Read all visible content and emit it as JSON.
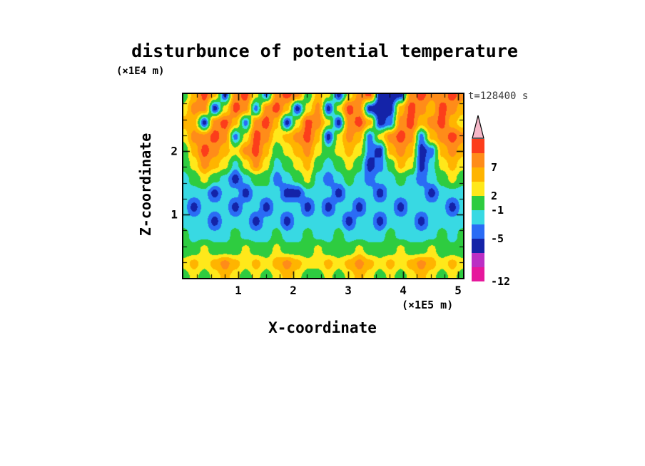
{
  "chart_data": {
    "type": "heatmap",
    "title": "disturbunce of potential temperature",
    "time_label": "t=128400 s",
    "xlabel": "X-coordinate",
    "x_unit_label": "(×1E5 m)",
    "ylabel": "Z-coordinate",
    "y_unit_label": "(×1E4 m)",
    "x_range": [
      0,
      5.09
    ],
    "x_ticks": [
      1,
      2,
      3,
      4,
      5
    ],
    "x_minor_tick_step": 0.25,
    "z_range": [
      0,
      2.9
    ],
    "z_ticks": [
      1,
      2
    ],
    "z_minor_tick_step": 0.25,
    "grid": false,
    "legend_position": "right",
    "palette": {
      "colors": [
        "#e6189c",
        "#bb2fc4",
        "#1423a8",
        "#2a6cf5",
        "#38d9e3",
        "#2ecc40",
        "#ffe81a",
        "#ffb400",
        "#ff8c19",
        "#fc3d1b",
        "#f6b8c8"
      ],
      "bin_upper_edges": [
        -9.7,
        -7.3,
        -5,
        -3,
        -1,
        2,
        4.5,
        7,
        9.5,
        12
      ],
      "labels": [
        {
          "text": "7",
          "frac_from_bottom": 0.8
        },
        {
          "text": "2",
          "frac_from_bottom": 0.6
        },
        {
          "text": "-1",
          "frac_from_bottom": 0.5
        },
        {
          "text": "-5",
          "frac_from_bottom": 0.3
        },
        {
          "text": "-12",
          "frac_from_bottom": 0.0
        }
      ]
    },
    "values_grid": {
      "note": "potential-temperature disturbance; rows top-to-bottom (z = 2.9 to 0 x1E4 m), cols left-to-right (x = 0 to 5.09 x1E5 m)",
      "rows": [
        [
          0,
          5.5,
          10.5,
          5.5,
          -6,
          8,
          10.5,
          3,
          -4,
          8,
          10.5,
          8,
          0,
          5.5,
          3,
          -6,
          3,
          8,
          10.5,
          -6,
          -7,
          -6,
          8,
          10.5,
          8,
          8,
          10.5,
          8
        ],
        [
          3,
          8,
          8,
          -6,
          3,
          10.5,
          8,
          -4,
          8,
          10.5,
          5.5,
          -6,
          3,
          8,
          -6,
          3,
          10.5,
          8,
          -6,
          -7,
          -6,
          5.5,
          10.5,
          8,
          5.5,
          10.5,
          8,
          5.5
        ],
        [
          5.5,
          5.5,
          -6,
          8,
          10.5,
          5.5,
          -4,
          8,
          10.5,
          5.5,
          -6,
          3,
          10.5,
          8,
          3,
          -6,
          8,
          10.5,
          5.5,
          -6,
          -4,
          8,
          10.5,
          5.5,
          8,
          10.5,
          5.5,
          3
        ],
        [
          3,
          8,
          8,
          10.5,
          8,
          -4,
          3,
          10.5,
          8,
          3,
          5.5,
          8,
          10.5,
          5.5,
          -6,
          3,
          8,
          5.5,
          -4,
          3,
          8,
          10.5,
          8,
          -4,
          5.5,
          8,
          10.5,
          8
        ],
        [
          0,
          5.5,
          10.5,
          8,
          5.5,
          3,
          8,
          10.5,
          5.5,
          0,
          3,
          5.5,
          8,
          3,
          0,
          3,
          5.5,
          3,
          -4,
          -6,
          5.5,
          8,
          5.5,
          -6,
          -4,
          5.5,
          8,
          5.5
        ],
        [
          0,
          3,
          8,
          5.5,
          3,
          -2,
          3,
          8,
          3,
          -2,
          0,
          3,
          5.5,
          0,
          -2,
          0,
          3,
          0,
          -6,
          -4,
          0,
          5.5,
          3,
          -6,
          -2,
          3,
          5.5,
          3
        ],
        [
          -2,
          0,
          3,
          0,
          -2,
          -6,
          -2,
          0,
          0,
          -4,
          -2,
          0,
          3,
          -2,
          -4,
          -2,
          0,
          -2,
          -4,
          -2,
          -2,
          0,
          -2,
          -4,
          -2,
          0,
          3,
          0
        ],
        [
          -2,
          -2,
          -2,
          -6,
          -2,
          -2,
          -6,
          -2,
          -2,
          -2,
          -6,
          -6,
          -2,
          -2,
          -2,
          -6,
          -2,
          -2,
          -2,
          -6,
          -2,
          -2,
          -2,
          -2,
          -6,
          -2,
          -2,
          -2
        ],
        [
          -2,
          -6,
          -2,
          -2,
          -2,
          -6,
          -2,
          -2,
          -6,
          -2,
          -2,
          -2,
          -6,
          -2,
          -6,
          -2,
          -2,
          -6,
          -2,
          -2,
          -2,
          -6,
          -2,
          -2,
          -2,
          -2,
          -6,
          -2
        ],
        [
          -2,
          -2,
          -2,
          -6,
          -2,
          -2,
          -2,
          -6,
          -2,
          -2,
          -6,
          -2,
          -2,
          -2,
          -2,
          -2,
          -6,
          -2,
          -2,
          -6,
          -2,
          -2,
          -2,
          -6,
          -2,
          -2,
          -2,
          -2
        ],
        [
          0,
          -2,
          -2,
          -2,
          -2,
          0,
          -2,
          -2,
          -2,
          0,
          -2,
          -2,
          0,
          -2,
          -2,
          0,
          -2,
          -2,
          -2,
          -2,
          0,
          -2,
          -2,
          -2,
          -2,
          0,
          -2,
          0
        ],
        [
          0,
          0,
          3,
          0,
          0,
          0,
          3,
          0,
          0,
          3,
          0,
          0,
          0,
          3,
          0,
          0,
          0,
          3,
          0,
          0,
          0,
          3,
          0,
          0,
          3,
          0,
          0,
          0
        ],
        [
          3,
          5.5,
          3,
          5.5,
          8,
          5.5,
          3,
          5.5,
          3,
          5.5,
          8,
          5.5,
          3,
          3,
          5.5,
          3,
          5.5,
          8,
          5.5,
          3,
          5.5,
          3,
          5.5,
          8,
          5.5,
          3,
          5.5,
          3
        ],
        [
          0,
          3,
          0,
          3,
          5.5,
          3,
          0,
          3,
          0,
          3,
          5.5,
          3,
          0,
          0,
          3,
          0,
          3,
          5.5,
          3,
          0,
          3,
          0,
          3,
          5.5,
          3,
          0,
          3,
          0
        ]
      ]
    }
  }
}
